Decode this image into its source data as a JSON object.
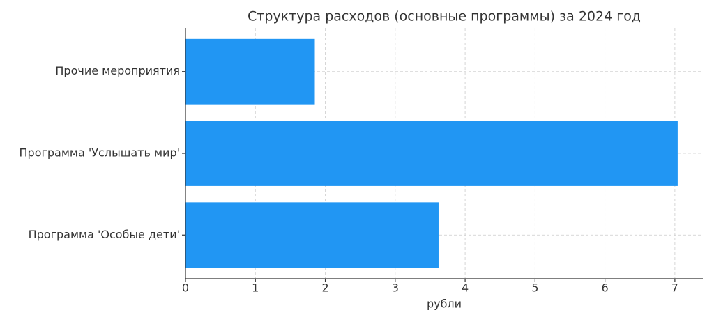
{
  "chart_data": {
    "type": "barh",
    "title": "Структура расходов (основные программы) за 2024 год",
    "xlabel": "рубли",
    "categories": [
      "Прочие мероприятия",
      "Программа 'Услышать мир'",
      "Программа 'Особые дети'"
    ],
    "values": [
      1.85,
      7.04,
      3.62
    ],
    "color": "#2196f3",
    "xlim": [
      0,
      7.4
    ],
    "xticks": [
      0,
      1,
      2,
      3,
      4,
      5,
      6,
      7
    ],
    "grid": true
  }
}
